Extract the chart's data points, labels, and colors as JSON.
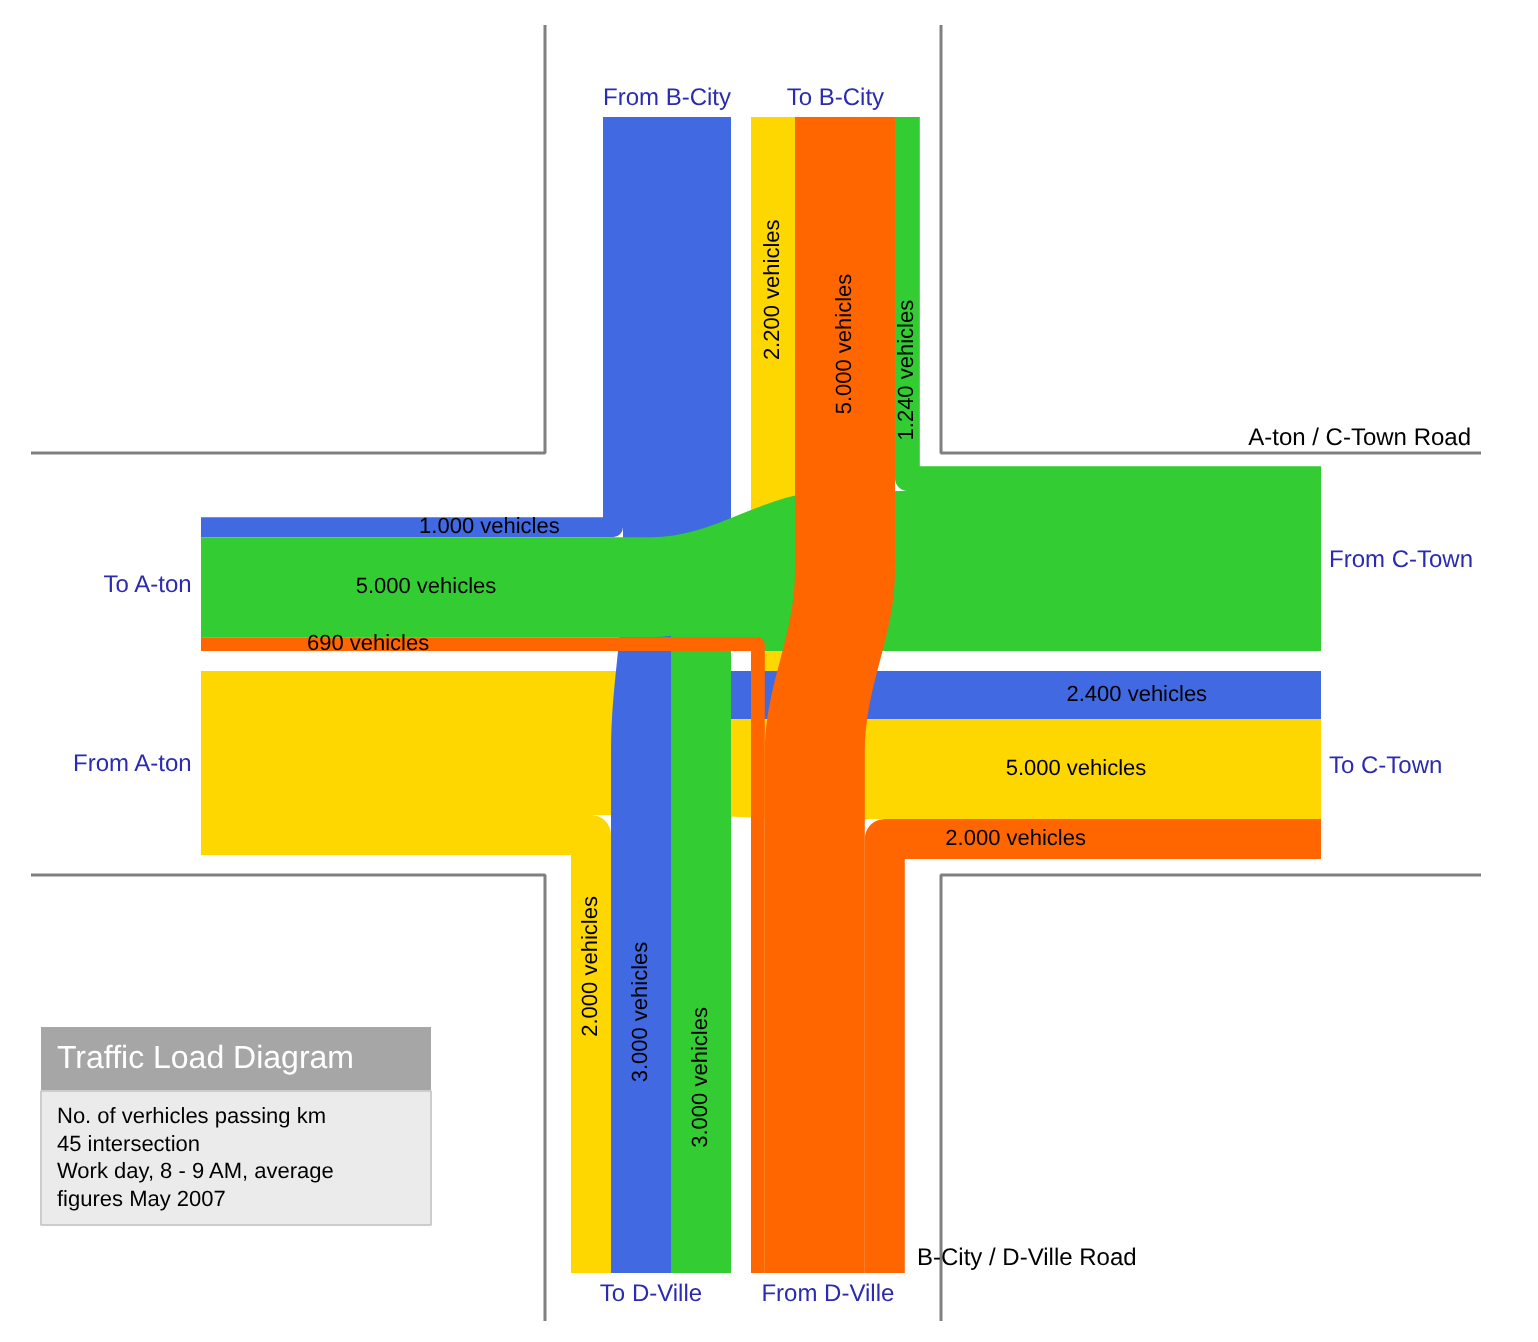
{
  "chart_data": {
    "type": "other",
    "title": "Traffic Load Diagram",
    "subtitle": "No. of verhicles passing km\n45 intersection\nWork day, 8 - 9 AM, average\nfigures May 2007",
    "categories": [
      "To A-ton",
      "To B-City",
      "To C-Town",
      "To D-Ville"
    ],
    "series": [
      {
        "name": "From A-ton",
        "color": "#ffd700",
        "values": [
          null,
          2200,
          5000,
          2000
        ],
        "value_labels": [
          null,
          "2.200 vehicles",
          "5.000 vehicles",
          "2.000 vehicles"
        ]
      },
      {
        "name": "From B-City",
        "color": "#4169e1",
        "values": [
          1000,
          null,
          2400,
          3000
        ],
        "value_labels": [
          "1.000 vehicles",
          null,
          "2.400 vehicles",
          "3.000 vehicles"
        ]
      },
      {
        "name": "From C-Town",
        "color": "#33cc33",
        "values": [
          5000,
          1240,
          null,
          3000
        ],
        "value_labels": [
          "5.000 vehicles",
          "1.240 vehicles",
          null,
          "3.000 vehicles"
        ]
      },
      {
        "name": "From D-Ville",
        "color": "#ff6600",
        "values": [
          690,
          5000,
          2000,
          null
        ],
        "value_labels": [
          "690 vehicles",
          "5.000 vehicles",
          "2.000 vehicles",
          null
        ]
      }
    ],
    "annotations": [
      "A-ton / C-Town Road",
      "B-City / D-Ville Road"
    ]
  }
}
